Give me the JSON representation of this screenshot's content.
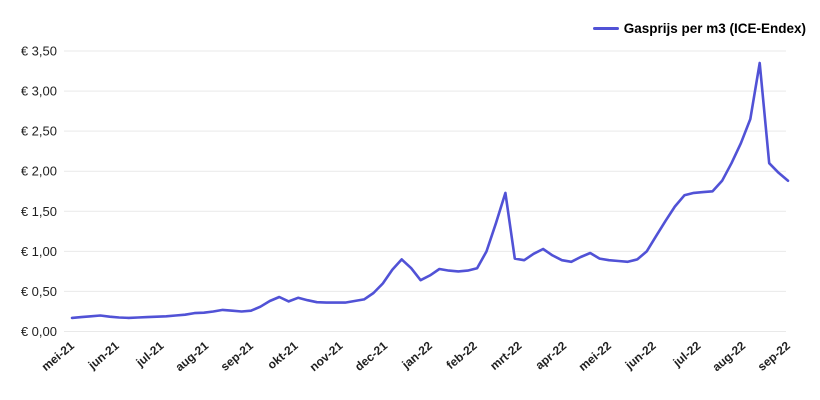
{
  "legend": {
    "label": "Gasprijs per m3 (ICE-Endex)"
  },
  "colors": {
    "line": "#5152d6",
    "grid": "#e9e9e9",
    "axis_text": "#1f1f1f",
    "background": "#ffffff"
  },
  "chart_data": {
    "type": "line",
    "title": "",
    "xlabel": "",
    "ylabel": "",
    "legend_position": "top-right",
    "grid": "horizontal",
    "ylim": [
      0,
      3.5
    ],
    "y_tick_step": 0.5,
    "y_tick_labels": [
      "€ 0,00",
      "€ 0,50",
      "€ 1,00",
      "€ 1,50",
      "€ 2,00",
      "€ 2,50",
      "€ 3,00",
      "€ 3,50"
    ],
    "x_tick_labels": [
      "mei-21",
      "jun-21",
      "jul-21",
      "aug-21",
      "sep-21",
      "okt-21",
      "nov-21",
      "dec-21",
      "jan-22",
      "feb-22",
      "mrt-22",
      "apr-22",
      "mei-22",
      "jun-22",
      "jul-22",
      "aug-22",
      "sep-22"
    ],
    "x_unit": "week (weekly quotes, mei 2021 t/m sep 2022)",
    "series": [
      {
        "name": "Gasprijs per m3 (ICE-Endex)",
        "color": "#5152d6",
        "values": [
          0.17,
          0.18,
          0.19,
          0.2,
          0.185,
          0.175,
          0.17,
          0.175,
          0.18,
          0.185,
          0.19,
          0.2,
          0.21,
          0.23,
          0.235,
          0.25,
          0.27,
          0.26,
          0.25,
          0.26,
          0.31,
          0.38,
          0.43,
          0.375,
          0.42,
          0.39,
          0.365,
          0.36,
          0.36,
          0.36,
          0.38,
          0.4,
          0.48,
          0.6,
          0.77,
          0.9,
          0.79,
          0.64,
          0.7,
          0.78,
          0.76,
          0.75,
          0.76,
          0.79,
          1.0,
          1.35,
          1.73,
          0.91,
          0.89,
          0.97,
          1.03,
          0.95,
          0.89,
          0.87,
          0.93,
          0.98,
          0.91,
          0.89,
          0.88,
          0.87,
          0.9,
          1.0,
          1.19,
          1.38,
          1.56,
          1.7,
          1.73,
          1.74,
          1.75,
          1.88,
          2.1,
          2.35,
          2.65,
          3.35,
          2.1,
          1.98,
          1.88
        ]
      }
    ]
  }
}
